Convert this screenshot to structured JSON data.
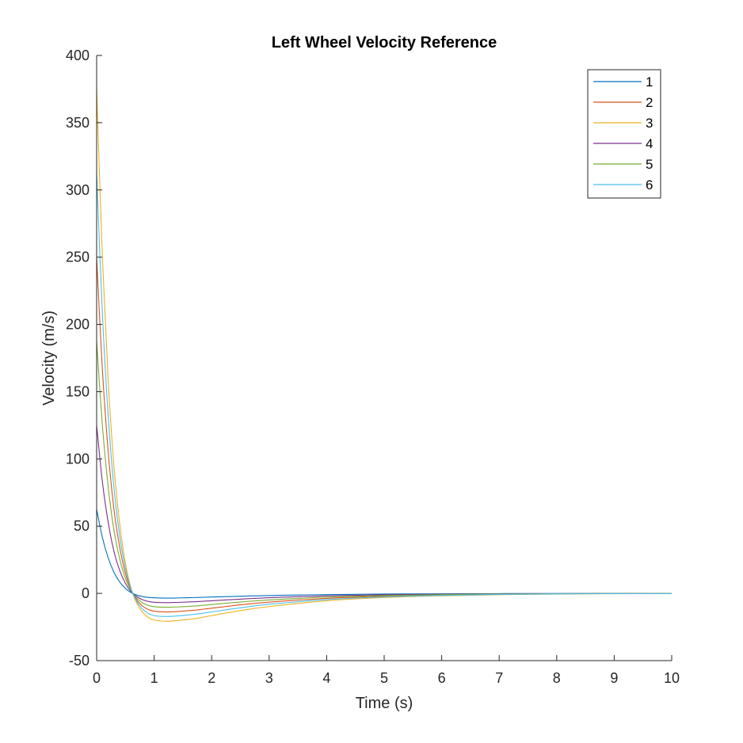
{
  "chart_data": {
    "type": "line",
    "title": "Left Wheel Velocity Reference",
    "xlabel": "Time (s)",
    "ylabel": "Velocity (m/s)",
    "xlim": [
      0,
      10
    ],
    "ylim": [
      -50,
      400
    ],
    "xticks": [
      "0",
      "1",
      "2",
      "3",
      "4",
      "5",
      "6",
      "7",
      "8",
      "9",
      "10"
    ],
    "yticks": [
      "-50",
      "0",
      "50",
      "100",
      "150",
      "200",
      "250",
      "300",
      "350",
      "400"
    ],
    "grid": false,
    "legend_position": "top-right",
    "x": [
      0,
      0.1,
      0.2,
      0.3,
      0.4,
      0.5,
      0.6,
      0.7,
      0.8,
      0.9,
      1.0,
      1.2,
      1.4,
      1.7,
      2,
      2.5,
      3,
      4,
      5,
      6,
      7,
      8,
      9,
      10
    ],
    "series": [
      {
        "name": "1",
        "color": "#0072BD",
        "values": [
          62.5,
          41.6,
          26.5,
          15.8,
          8.6,
          3.7,
          0.6,
          -1.3,
          -2.4,
          -3.0,
          -3.3,
          -3.5,
          -3.4,
          -3.1,
          -2.7,
          -2.1,
          -1.6,
          -0.9,
          -0.5,
          -0.3,
          -0.15,
          -0.08,
          -0.04,
          -0.02
        ]
      },
      {
        "name": "2",
        "color": "#D95319",
        "values": [
          250,
          166.5,
          106,
          63,
          34.5,
          15,
          2.5,
          -5,
          -9.5,
          -12,
          -13.2,
          -13.8,
          -13.5,
          -12.5,
          -11,
          -8.5,
          -6.5,
          -3.7,
          -2.1,
          -1.2,
          -0.6,
          -0.3,
          -0.15,
          -0.08
        ]
      },
      {
        "name": "3",
        "color": "#EDB120",
        "values": [
          375,
          250,
          159,
          95,
          52,
          22.5,
          3.7,
          -7.5,
          -14,
          -18,
          -19.8,
          -20.7,
          -20.2,
          -18.8,
          -16.5,
          -12.8,
          -9.8,
          -5.5,
          -3.1,
          -1.8,
          -1.0,
          -0.5,
          -0.25,
          -0.12
        ]
      },
      {
        "name": "4",
        "color": "#7E2F8E",
        "values": [
          125,
          83,
          53,
          31.5,
          17.2,
          7.5,
          1.2,
          -2.5,
          -4.7,
          -6,
          -6.6,
          -6.9,
          -6.7,
          -6.2,
          -5.5,
          -4.3,
          -3.2,
          -1.8,
          -1.0,
          -0.6,
          -0.3,
          -0.15,
          -0.08,
          -0.04
        ]
      },
      {
        "name": "5",
        "color": "#77AC30",
        "values": [
          187.5,
          125,
          79.5,
          47.3,
          25.8,
          11.2,
          1.9,
          -3.7,
          -7,
          -9,
          -9.9,
          -10.3,
          -10.1,
          -9.4,
          -8.3,
          -6.4,
          -4.9,
          -2.8,
          -1.6,
          -0.9,
          -0.5,
          -0.25,
          -0.12,
          -0.06
        ]
      },
      {
        "name": "6",
        "color": "#4DBEEE",
        "values": [
          312.5,
          208,
          132.5,
          79,
          43,
          18.7,
          3.1,
          -6.2,
          -11.7,
          -15,
          -16.5,
          -17.2,
          -16.8,
          -15.6,
          -13.8,
          -10.7,
          -8.1,
          -4.6,
          -2.6,
          -1.5,
          -0.8,
          -0.4,
          -0.2,
          -0.1
        ]
      }
    ]
  }
}
